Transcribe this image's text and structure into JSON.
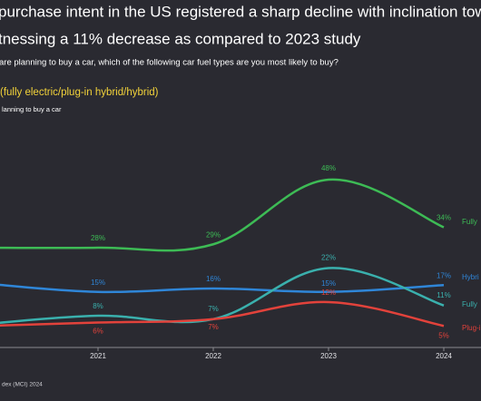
{
  "chart_data": {
    "type": "line",
    "title": [
      "purchase intent in the US registered a sharp decline with inclination towar",
      "tnessing a 11% decrease as compared to 2023 study"
    ],
    "subtitle": "are planning to buy a car, which of the following car fuel types are you most likely to buy?",
    "legend_title": "(fully electric/plug-in hybrid/hybrid)",
    "axis_note": "lanning to buy a car",
    "source": "dex (MCI) 2024",
    "categories": [
      null,
      "2021",
      "2022",
      "2023",
      "2024"
    ],
    "series": [
      {
        "name": "Fully",
        "color": "#3dbb55",
        "values": [
          28,
          28,
          29,
          48,
          34
        ],
        "value_labels": [
          null,
          "28%",
          "29%",
          "48%",
          "34%"
        ]
      },
      {
        "name": "Hybri",
        "color": "#2f86d8",
        "values": [
          17.5,
          15,
          16,
          15,
          17
        ],
        "value_labels": [
          null,
          "15%",
          "16%",
          "15%",
          "17%"
        ]
      },
      {
        "name": "Fully",
        "color": "#3ab0ad",
        "values": [
          5.5,
          8,
          7,
          22,
          11
        ],
        "value_labels": [
          null,
          "8%",
          "7%",
          "22%",
          "11%"
        ]
      },
      {
        "name": "Plug-i",
        "color": "#e2423b",
        "values": [
          5,
          6,
          7,
          12,
          5
        ],
        "value_labels": [
          null,
          "6%",
          "7%",
          "12%",
          "5%"
        ]
      }
    ]
  }
}
